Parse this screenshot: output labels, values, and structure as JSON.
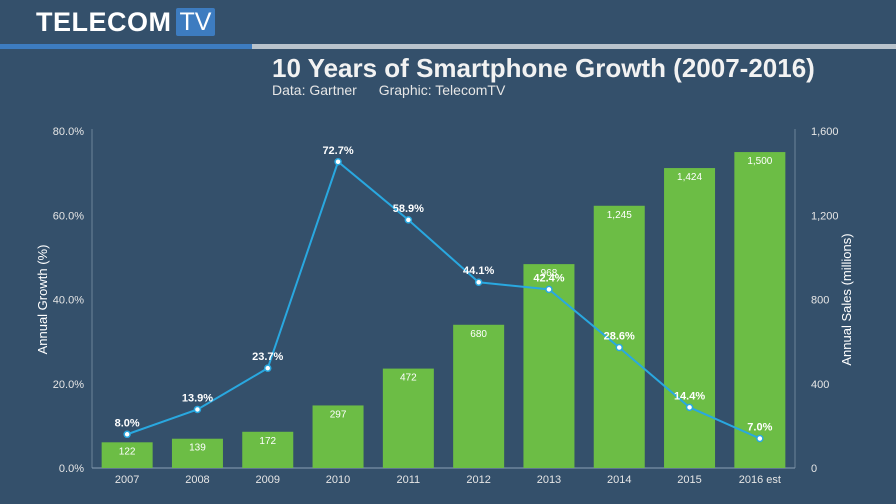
{
  "header": {
    "logo_text": "TELECOM",
    "logo_badge": "TV",
    "title": "10 Years of Smartphone Growth (2007-2016)",
    "source": "Data: Gartner",
    "graphic": "Graphic: TelecomTV"
  },
  "colors": {
    "background": "#34506b",
    "bar": "#6cbd45",
    "line": "#29a8e0",
    "brand_blue": "#3d7cc0"
  },
  "chart_data": {
    "type": "bar+line",
    "categories": [
      "2007",
      "2008",
      "2009",
      "2010",
      "2011",
      "2012",
      "2013",
      "2014",
      "2015",
      "2016 est"
    ],
    "series": [
      {
        "name": "Annual Sales (millions)",
        "type": "bar",
        "axis": "right",
        "values": [
          122,
          139,
          172,
          297,
          472,
          680,
          968,
          1245,
          1424,
          1500
        ],
        "labels": [
          "122",
          "139",
          "172",
          "297",
          "472",
          "680",
          "968",
          "1,245",
          "1,424",
          "1,500"
        ]
      },
      {
        "name": "Annual Growth (%)",
        "type": "line",
        "axis": "left",
        "values": [
          8.0,
          13.9,
          23.7,
          72.7,
          58.9,
          44.1,
          42.4,
          28.6,
          14.4,
          7.0
        ],
        "labels": [
          "8.0%",
          "13.9%",
          "23.7%",
          "72.7%",
          "58.9%",
          "44.1%",
          "42.4%",
          "28.6%",
          "14.4%",
          "7.0%"
        ]
      }
    ],
    "ylabel_left": "Annual Growth (%)",
    "ylabel_right": "Annual Sales (millions)",
    "ylim_left": [
      0,
      80
    ],
    "ylim_right": [
      0,
      1600
    ],
    "yticks_left": [
      "0.0%",
      "20.0%",
      "40.0%",
      "60.0%",
      "80.0%"
    ],
    "yticks_right": [
      "0",
      "400",
      "800",
      "1,200",
      "1,600"
    ]
  }
}
